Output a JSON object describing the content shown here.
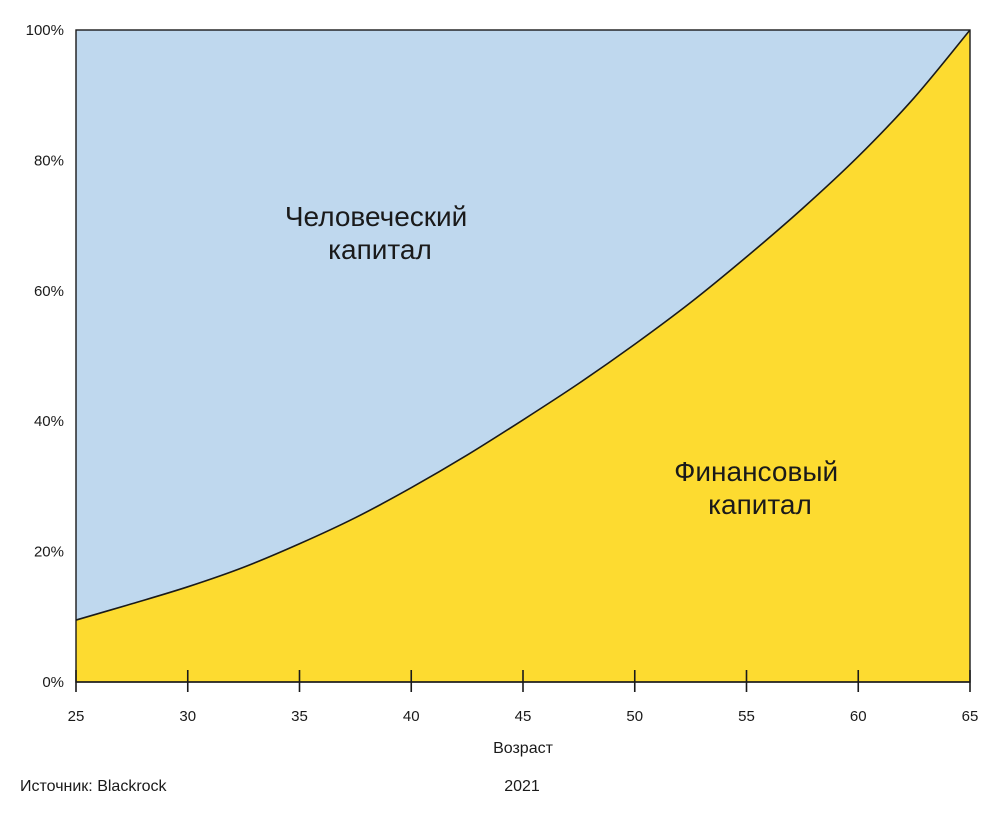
{
  "chart_data": {
    "type": "area",
    "stacked": true,
    "percent": true,
    "x": [
      25,
      27.5,
      30,
      32.5,
      35,
      37.5,
      40,
      42.5,
      45,
      47.5,
      50,
      52.5,
      55,
      57.5,
      60,
      62.5,
      65
    ],
    "series": [
      {
        "name": "Финансовый капитал",
        "color": "#FDDB30",
        "values": [
          9.5,
          12,
          14.6,
          17.6,
          21.2,
          25.2,
          29.8,
          34.8,
          40.2,
          45.8,
          51.8,
          58.2,
          65.2,
          72.6,
          80.6,
          89.6,
          100
        ]
      },
      {
        "name": "Человеческий капитал",
        "color": "#BFD8EE",
        "values": [
          90.5,
          88,
          85.4,
          82.4,
          78.8,
          74.8,
          70.2,
          65.2,
          59.8,
          54.2,
          48.2,
          41.8,
          34.8,
          27.4,
          19.4,
          10.4,
          0
        ]
      }
    ],
    "area_labels": {
      "human": [
        "Человеческий",
        "капитал"
      ],
      "financial": [
        "Финансовый",
        "капитал"
      ]
    },
    "xlabel": "Возраст",
    "ylabel": "",
    "xlim": [
      25,
      65
    ],
    "ylim": [
      0,
      100
    ],
    "x_ticks": [
      "25",
      "30",
      "35",
      "40",
      "45",
      "50",
      "55",
      "60",
      "65"
    ],
    "y_ticks": [
      "0%",
      "20%",
      "40%",
      "60%",
      "80%",
      "100%"
    ],
    "grid": false,
    "legend": "none",
    "source": "Источник: Blackrock",
    "year": "2021"
  }
}
